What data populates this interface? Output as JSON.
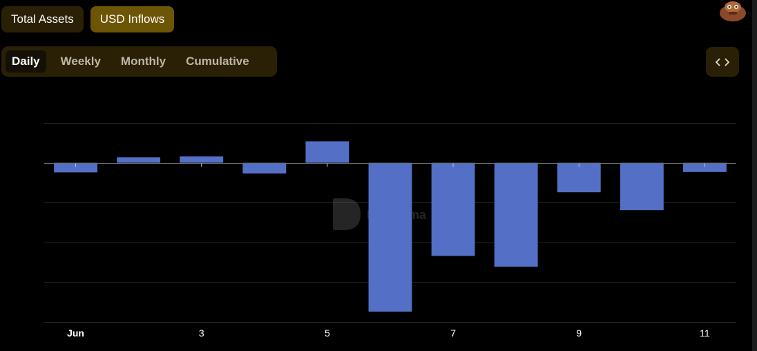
{
  "tabs": [
    {
      "label": "Total Assets",
      "active": false
    },
    {
      "label": "USD Inflows",
      "active": true
    }
  ],
  "periods": [
    {
      "label": "Daily",
      "active": true
    },
    {
      "label": "Weekly",
      "active": false
    },
    {
      "label": "Monthly",
      "active": false
    },
    {
      "label": "Cumulative",
      "active": false
    }
  ],
  "embed_icon": "code-brackets-icon",
  "avatar_icon": "llama-avatar-icon",
  "watermark": {
    "text": "DefiLlama"
  },
  "colors": {
    "bar": "#5470c6",
    "grid": "#262626",
    "accent": "#6d5506"
  },
  "chart_data": {
    "type": "bar",
    "title": "",
    "xlabel": "",
    "ylabel": "",
    "categories": [
      "Jun 1",
      "Jun 2",
      "Jun 3",
      "Jun 4",
      "Jun 5",
      "Jun 6",
      "Jun 7",
      "Jun 8",
      "Jun 9",
      "Jun 10",
      "Jun 11"
    ],
    "values": [
      -0.24,
      0.14,
      0.16,
      -0.27,
      0.54,
      -3.74,
      -2.34,
      -2.61,
      -0.74,
      -1.19,
      -0.23
    ],
    "ylim": [
      -4,
      1
    ],
    "x_tick_labels": [
      {
        "category": "Jun 1",
        "label": "Jun"
      },
      {
        "category": "Jun 3",
        "label": "3"
      },
      {
        "category": "Jun 5",
        "label": "5"
      },
      {
        "category": "Jun 7",
        "label": "7"
      },
      {
        "category": "Jun 9",
        "label": "9"
      },
      {
        "category": "Jun 11",
        "label": "11"
      }
    ],
    "y_tick_labels_visible": false,
    "grid": true,
    "legend": "none"
  }
}
